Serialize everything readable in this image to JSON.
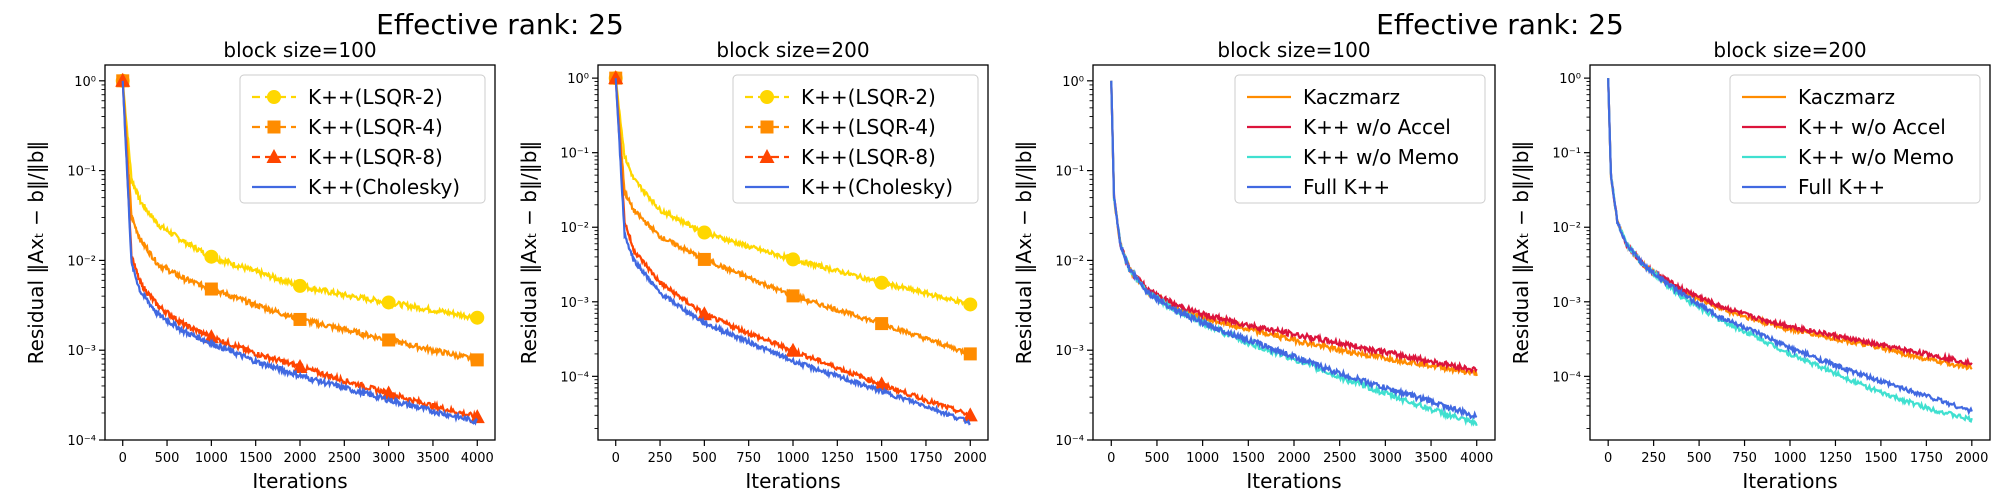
{
  "suptitles": [
    "Effective rank: 25",
    "Effective rank: 25"
  ],
  "chart_data": [
    {
      "type": "line",
      "title": "block size=100",
      "xlabel": "Iterations",
      "ylabel": "Residual ‖Axₜ − b‖/‖b‖",
      "xlim": [
        -200,
        4200
      ],
      "ylim": [
        0.0001,
        1.5
      ],
      "yscale": "log",
      "xticks": [
        0,
        500,
        1000,
        1500,
        2000,
        2500,
        3000,
        3500,
        4000
      ],
      "yticks": [
        0.0001,
        0.001,
        0.01,
        0.1,
        1
      ],
      "legend": "top-right",
      "series": [
        {
          "name": "K++(LSQR-2)",
          "color": "#FFD700",
          "dash": "8,5",
          "marker": "circle",
          "x": [
            0,
            100,
            200,
            400,
            700,
            1000,
            1500,
            2000,
            2500,
            3000,
            3500,
            4000
          ],
          "values": [
            1,
            0.08,
            0.045,
            0.025,
            0.016,
            0.011,
            0.0075,
            0.0052,
            0.0041,
            0.0034,
            0.0028,
            0.0023
          ]
        },
        {
          "name": "K++(LSQR-4)",
          "color": "#FF8C00",
          "dash": "8,5",
          "marker": "square",
          "x": [
            0,
            100,
            200,
            400,
            700,
            1000,
            1500,
            2000,
            2500,
            3000,
            3500,
            4000
          ],
          "values": [
            1,
            0.03,
            0.017,
            0.009,
            0.0062,
            0.0048,
            0.0032,
            0.0022,
            0.0017,
            0.0013,
            0.001,
            0.00078
          ]
        },
        {
          "name": "K++(LSQR-8)",
          "color": "#FF4500",
          "dash": "8,5",
          "marker": "triangle",
          "x": [
            0,
            100,
            200,
            400,
            700,
            1000,
            1500,
            2000,
            2500,
            3000,
            3500,
            4000
          ],
          "values": [
            1,
            0.011,
            0.0055,
            0.0031,
            0.0019,
            0.0014,
            0.00092,
            0.00065,
            0.00046,
            0.00033,
            0.00024,
            0.00018
          ]
        },
        {
          "name": "K++(Cholesky)",
          "color": "#4169E1",
          "dash": "",
          "marker": "none",
          "x": [
            0,
            100,
            200,
            400,
            700,
            1000,
            1500,
            2000,
            2500,
            3000,
            3500,
            4000
          ],
          "values": [
            1,
            0.009,
            0.0045,
            0.0025,
            0.0016,
            0.0012,
            0.00075,
            0.00052,
            0.00038,
            0.00028,
            0.00021,
            0.00016
          ]
        }
      ]
    },
    {
      "type": "line",
      "title": "block size=200",
      "xlabel": "Iterations",
      "ylabel": "Residual ‖Axₜ − b‖/‖b‖",
      "xlim": [
        -100,
        2100
      ],
      "ylim": [
        1.4e-05,
        1.5
      ],
      "yscale": "log",
      "xticks": [
        0,
        250,
        500,
        750,
        1000,
        1250,
        1500,
        1750,
        2000
      ],
      "yticks": [
        0.0001,
        0.001,
        0.01,
        0.1,
        1
      ],
      "legend": "top-right",
      "series": [
        {
          "name": "K++(LSQR-2)",
          "color": "#FFD700",
          "dash": "8,5",
          "marker": "circle",
          "x": [
            0,
            50,
            100,
            250,
            500,
            750,
            1000,
            1250,
            1500,
            1750,
            2000
          ],
          "values": [
            1,
            0.09,
            0.045,
            0.017,
            0.0085,
            0.0055,
            0.0037,
            0.0026,
            0.0018,
            0.0013,
            0.00092
          ]
        },
        {
          "name": "K++(LSQR-4)",
          "color": "#FF8C00",
          "dash": "8,5",
          "marker": "square",
          "x": [
            0,
            50,
            100,
            250,
            500,
            750,
            1000,
            1250,
            1500,
            1750,
            2000
          ],
          "values": [
            1,
            0.03,
            0.017,
            0.0075,
            0.0037,
            0.0021,
            0.0012,
            0.00078,
            0.00051,
            0.00032,
            0.0002
          ]
        },
        {
          "name": "K++(LSQR-8)",
          "color": "#FF4500",
          "dash": "8,5",
          "marker": "triangle",
          "x": [
            0,
            50,
            100,
            250,
            500,
            750,
            1000,
            1250,
            1500,
            1750,
            2000
          ],
          "values": [
            1,
            0.012,
            0.005,
            0.0018,
            0.00068,
            0.00038,
            0.00022,
            0.00013,
            7.8e-05,
            4.8e-05,
            3e-05
          ]
        },
        {
          "name": "K++(Cholesky)",
          "color": "#4169E1",
          "dash": "",
          "marker": "none",
          "x": [
            0,
            50,
            100,
            250,
            500,
            750,
            1000,
            1250,
            1500,
            1750,
            2000
          ],
          "values": [
            1,
            0.008,
            0.0037,
            0.0013,
            0.00052,
            0.00029,
            0.00016,
            0.0001,
            6.3e-05,
            4e-05,
            2.4e-05
          ]
        }
      ]
    },
    {
      "type": "line",
      "title": "block size=100",
      "xlabel": "Iterations",
      "ylabel": "Residual ‖Axₜ − b‖/‖b‖",
      "xlim": [
        -200,
        4200
      ],
      "ylim": [
        0.0001,
        1.5
      ],
      "yscale": "log",
      "xticks": [
        0,
        500,
        1000,
        1500,
        2000,
        2500,
        3000,
        3500,
        4000
      ],
      "yticks": [
        0.0001,
        0.001,
        0.01,
        0.1,
        1
      ],
      "legend": "top-right",
      "series": [
        {
          "name": "Kaczmarz",
          "color": "#FF8C00",
          "dash": "",
          "marker": "none",
          "x": [
            0,
            30,
            100,
            200,
            400,
            700,
            1000,
            1500,
            2000,
            2500,
            3000,
            3500,
            4000
          ],
          "values": [
            1,
            0.05,
            0.015,
            0.008,
            0.0045,
            0.003,
            0.0023,
            0.0017,
            0.0013,
            0.001,
            0.00082,
            0.00068,
            0.00055
          ]
        },
        {
          "name": "K++ w/o Accel",
          "color": "#DC143C",
          "dash": "",
          "marker": "none",
          "x": [
            0,
            30,
            100,
            200,
            400,
            700,
            1000,
            1500,
            2000,
            2500,
            3000,
            3500,
            4000
          ],
          "values": [
            1,
            0.05,
            0.015,
            0.008,
            0.0047,
            0.0032,
            0.0025,
            0.0019,
            0.0015,
            0.0012,
            0.00095,
            0.00075,
            0.0006
          ]
        },
        {
          "name": "K++ w/o Memo",
          "color": "#40E0D0",
          "dash": "",
          "marker": "none",
          "x": [
            0,
            30,
            100,
            200,
            400,
            700,
            1000,
            1500,
            2000,
            2500,
            3000,
            3500,
            4000
          ],
          "values": [
            1,
            0.05,
            0.015,
            0.008,
            0.0044,
            0.0028,
            0.002,
            0.0012,
            0.0008,
            0.0005,
            0.00033,
            0.00022,
            0.00015
          ]
        },
        {
          "name": "Full K++",
          "color": "#4169E1",
          "dash": "",
          "marker": "none",
          "x": [
            0,
            30,
            100,
            200,
            400,
            700,
            1000,
            1500,
            2000,
            2500,
            3000,
            3500,
            4000
          ],
          "values": [
            1,
            0.05,
            0.015,
            0.008,
            0.0044,
            0.0028,
            0.002,
            0.0013,
            0.00085,
            0.00055,
            0.00038,
            0.00027,
            0.00018
          ]
        }
      ]
    },
    {
      "type": "line",
      "title": "block size=200",
      "xlabel": "Iterations",
      "ylabel": "Residual ‖Axₜ − b‖/‖b‖",
      "xlim": [
        -100,
        2100
      ],
      "ylim": [
        1.4e-05,
        1.5
      ],
      "yscale": "log",
      "xticks": [
        0,
        250,
        500,
        750,
        1000,
        1250,
        1500,
        1750,
        2000
      ],
      "yticks": [
        0.0001,
        0.001,
        0.01,
        0.1,
        1
      ],
      "legend": "top-right",
      "series": [
        {
          "name": "Kaczmarz",
          "color": "#FF8C00",
          "dash": "",
          "marker": "none",
          "x": [
            0,
            15,
            50,
            100,
            200,
            400,
            600,
            800,
            1000,
            1250,
            1500,
            1750,
            2000
          ],
          "values": [
            1,
            0.05,
            0.012,
            0.006,
            0.003,
            0.0014,
            0.00085,
            0.00058,
            0.00043,
            0.00032,
            0.00024,
            0.00017,
            0.00013
          ]
        },
        {
          "name": "K++ w/o Accel",
          "color": "#DC143C",
          "dash": "",
          "marker": "none",
          "x": [
            0,
            15,
            50,
            100,
            200,
            400,
            600,
            800,
            1000,
            1250,
            1500,
            1750,
            2000
          ],
          "values": [
            1,
            0.05,
            0.012,
            0.006,
            0.003,
            0.0015,
            0.0009,
            0.00062,
            0.00047,
            0.00035,
            0.00026,
            0.0002,
            0.00015
          ]
        },
        {
          "name": "K++ w/o Memo",
          "color": "#40E0D0",
          "dash": "",
          "marker": "none",
          "x": [
            0,
            15,
            50,
            100,
            200,
            400,
            600,
            800,
            1000,
            1250,
            1500,
            1750,
            2000
          ],
          "values": [
            1,
            0.05,
            0.012,
            0.006,
            0.003,
            0.0012,
            0.0006,
            0.00035,
            0.0002,
            0.00011,
            6e-05,
            3.8e-05,
            2.6e-05
          ]
        },
        {
          "name": "Full K++",
          "color": "#4169E1",
          "dash": "",
          "marker": "none",
          "x": [
            0,
            15,
            50,
            100,
            200,
            400,
            600,
            800,
            1000,
            1250,
            1500,
            1750,
            2000
          ],
          "values": [
            1,
            0.05,
            0.012,
            0.006,
            0.003,
            0.0013,
            0.00065,
            0.0004,
            0.00024,
            0.00014,
            8.5e-05,
            5.5e-05,
            3.4e-05
          ]
        }
      ]
    }
  ]
}
